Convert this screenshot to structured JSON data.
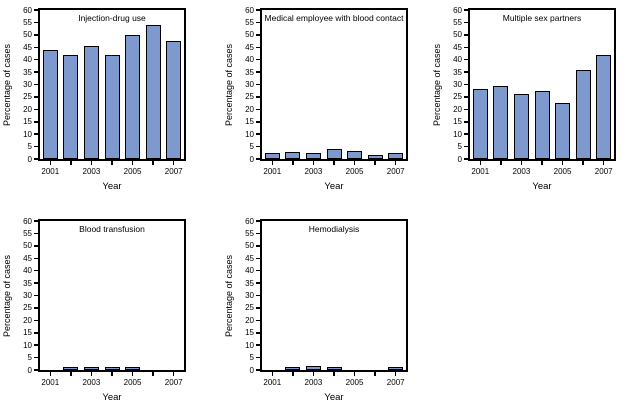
{
  "figure": {
    "background_color": "#ffffff",
    "bar_fill_color": "#7D99CE",
    "bar_border_color": "#000000",
    "axis_color": "#000000",
    "y_tick_step": 5,
    "x_tick_labels_shown": [
      "2001",
      "2003",
      "2005",
      "2007"
    ]
  },
  "chart_data": [
    {
      "type": "bar",
      "title": "Injection-drug use",
      "xlabel": "Year",
      "ylabel": "Percentage of cases",
      "ylim": [
        0,
        60
      ],
      "grid": false,
      "legend": false,
      "categories": [
        "2001",
        "2002",
        "2003",
        "2004",
        "2005",
        "2006",
        "2007"
      ],
      "values": [
        44,
        42,
        45.5,
        42,
        50,
        54,
        47.5
      ]
    },
    {
      "type": "bar",
      "title": "Medical employee with blood contact",
      "xlabel": "Year",
      "ylabel": "Percentage of cases",
      "ylim": [
        0,
        60
      ],
      "grid": false,
      "legend": false,
      "categories": [
        "2001",
        "2002",
        "2003",
        "2004",
        "2005",
        "2006",
        "2007"
      ],
      "values": [
        2.6,
        2.8,
        2.4,
        3.9,
        3.3,
        1.8,
        2.4
      ]
    },
    {
      "type": "bar",
      "title": "Multiple sex partners",
      "xlabel": "Year",
      "ylabel": "Percentage of cases",
      "ylim": [
        0,
        60
      ],
      "grid": false,
      "legend": false,
      "categories": [
        "2001",
        "2002",
        "2003",
        "2004",
        "2005",
        "2006",
        "2007"
      ],
      "values": [
        28,
        29.5,
        26,
        27.5,
        22.5,
        36,
        42
      ]
    },
    {
      "type": "bar",
      "title": "Blood transfusion",
      "xlabel": "Year",
      "ylabel": "Percentage of cases",
      "ylim": [
        0,
        60
      ],
      "grid": false,
      "legend": false,
      "categories": [
        "2001",
        "2002",
        "2003",
        "2004",
        "2005",
        "2006",
        "2007"
      ],
      "values": [
        0,
        0.6,
        0.6,
        0.7,
        0.6,
        0,
        0
      ]
    },
    {
      "type": "bar",
      "title": "Hemodialysis",
      "xlabel": "Year",
      "ylabel": "Percentage of cases",
      "ylim": [
        0,
        60
      ],
      "grid": false,
      "legend": false,
      "categories": [
        "2001",
        "2002",
        "2003",
        "2004",
        "2005",
        "2006",
        "2007"
      ],
      "values": [
        0,
        1,
        1.8,
        1,
        0,
        0,
        0.7
      ]
    }
  ]
}
